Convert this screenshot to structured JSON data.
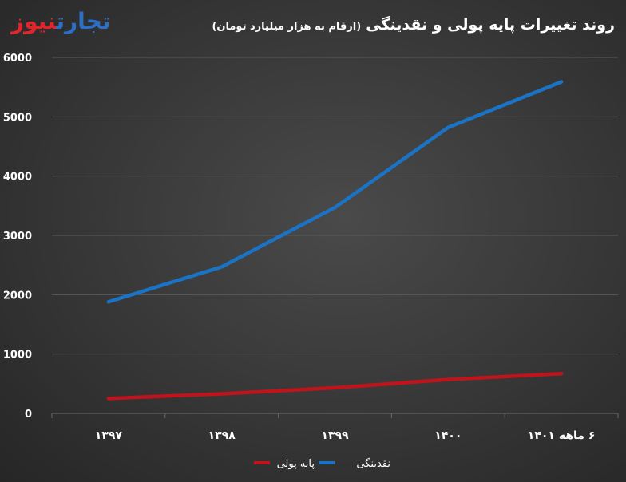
{
  "logo": {
    "part1": "تجارت",
    "part2": "نیوز"
  },
  "chart_data": {
    "type": "line",
    "title": "روند تغییرات پایه پولی و نقدینگی",
    "subtitle": "(ارقام به هزار میلیارد تومان)",
    "categories": [
      "۱۳۹۷",
      "۱۳۹۸",
      "۱۳۹۹",
      "۱۴۰۰",
      "۶ ماهه ۱۴۰۱"
    ],
    "series": [
      {
        "name": "پایه پولی",
        "color": "#c0141c",
        "values": [
          250,
          330,
          430,
          570,
          670
        ]
      },
      {
        "name": "نقدینگی",
        "color": "#1a73c4",
        "values": [
          1880,
          2470,
          3470,
          4820,
          5590
        ]
      }
    ],
    "yticks": [
      {
        "value": 0,
        "label": "0"
      },
      {
        "value": 1000,
        "label": "1000"
      },
      {
        "value": 2000,
        "label": "2000"
      },
      {
        "value": 3000,
        "label": "3000"
      },
      {
        "value": 4000,
        "label": "4000"
      },
      {
        "value": 5000,
        "label": "5000"
      },
      {
        "value": 6000,
        "label": "6000"
      }
    ],
    "ylim": [
      0,
      6000
    ],
    "grid": true,
    "legend": "bottom-center"
  }
}
